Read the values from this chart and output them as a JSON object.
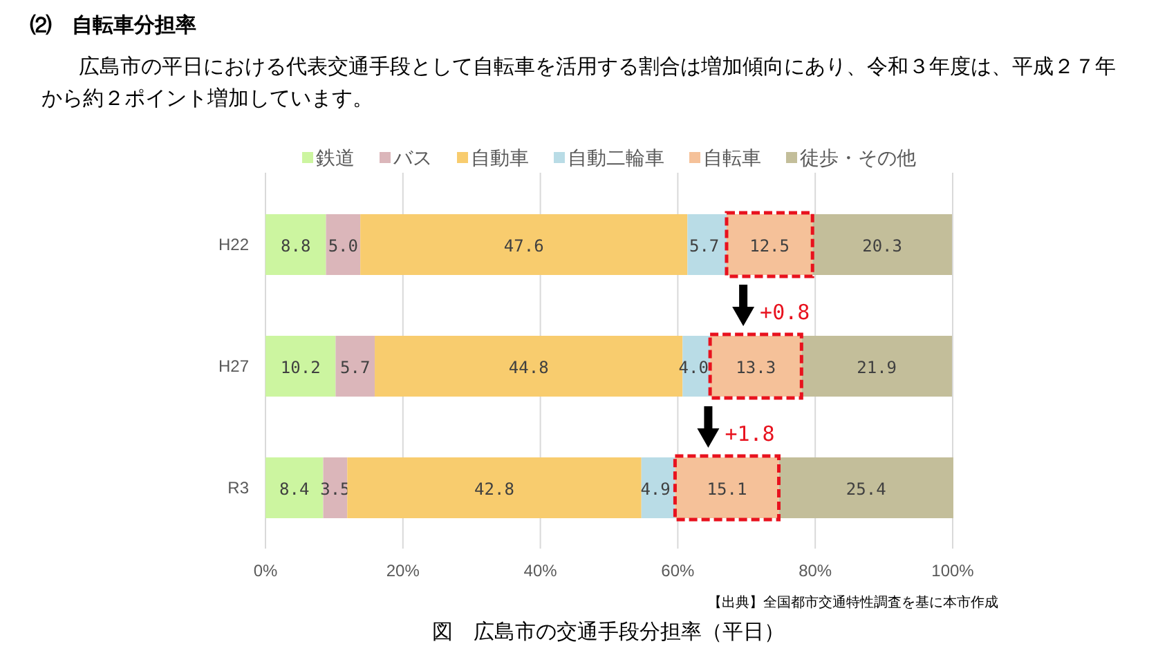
{
  "chart_data": {
    "type": "bar",
    "orientation": "horizontal",
    "stacked": true,
    "grid": "x",
    "legend": "top",
    "title": "⑵　自転車分担率",
    "subtitle": "広島市の平日における代表交通手段として自転車を活用する割合は増加傾向にあり、令和３年度は、平成２７年から約２ポイント増加しています。",
    "categories": [
      "H22",
      "H27",
      "R3"
    ],
    "series": [
      {
        "name": "鉄道",
        "color": "#ccf5a0",
        "values": [
          8.8,
          10.2,
          8.4
        ],
        "value_labels": [
          "8.8",
          "10.2",
          "8.4"
        ]
      },
      {
        "name": "バス",
        "color": "#dbb6ba",
        "values": [
          5.0,
          5.7,
          3.5
        ],
        "value_labels": [
          "5.0",
          "5.7",
          "3.5"
        ]
      },
      {
        "name": "自動車",
        "color": "#f8cc6e",
        "values": [
          47.6,
          44.8,
          42.8
        ],
        "value_labels": [
          "47.6",
          "44.8",
          "42.8"
        ]
      },
      {
        "name": "自動二輪車",
        "color": "#b9dce6",
        "values": [
          5.7,
          4.0,
          4.9
        ],
        "value_labels": [
          "5.7",
          "4.0",
          "4.9"
        ]
      },
      {
        "name": "自転車",
        "color": "#f5c199",
        "values": [
          12.5,
          13.3,
          15.1
        ],
        "value_labels": [
          "12.5",
          "13.3",
          "15.1"
        ]
      },
      {
        "name": "徒歩・その他",
        "color": "#c3be9a",
        "values": [
          20.3,
          21.9,
          25.4
        ],
        "value_labels": [
          "20.3",
          "21.9",
          "25.4"
        ]
      }
    ],
    "xlim": [
      0,
      100
    ],
    "xticks": [
      {
        "value": 0,
        "label": "0%"
      },
      {
        "value": 20,
        "label": "20%"
      },
      {
        "value": 40,
        "label": "40%"
      },
      {
        "value": 60,
        "label": "60%"
      },
      {
        "value": 80,
        "label": "80%"
      },
      {
        "value": 100,
        "label": "100%"
      }
    ],
    "annotations": [
      "+0.8",
      "+1.8",
      "【出典】全国都市交通特性調査を基に本市作成",
      "図　広島市の交通手段分担率（平日）"
    ]
  }
}
